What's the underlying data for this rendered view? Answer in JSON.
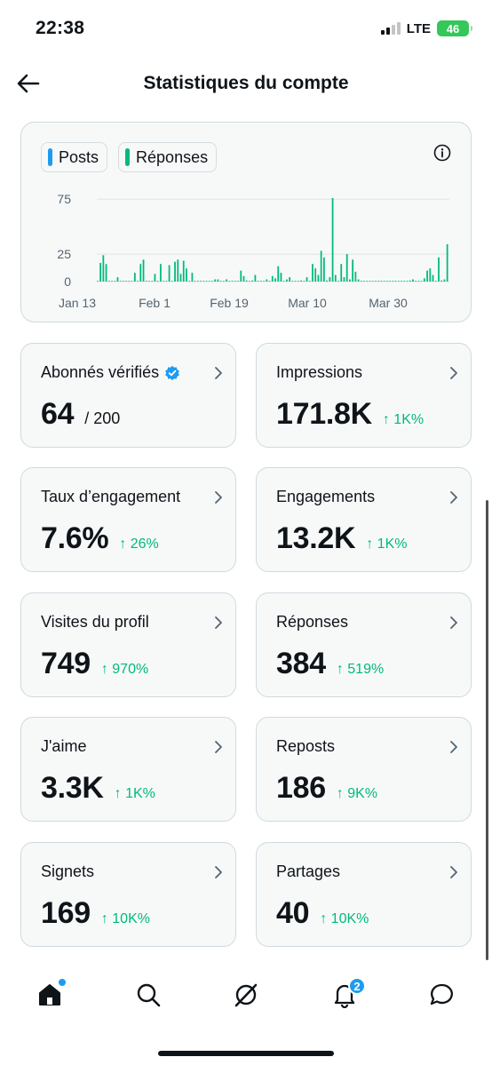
{
  "status_bar": {
    "time": "22:38",
    "network": "LTE",
    "battery": "46"
  },
  "header": {
    "title": "Statistiques du compte"
  },
  "chart": {
    "legend": [
      {
        "label": "Posts",
        "color": "#1d9bf0"
      },
      {
        "label": "Réponses",
        "color": "#00ba7c"
      }
    ]
  },
  "chart_data": {
    "type": "bar",
    "series": [
      {
        "name": "Posts",
        "color": "#1d9bf0",
        "values": []
      },
      {
        "name": "Réponses",
        "color": "#00ba7c",
        "values": [
          0,
          17,
          24,
          16,
          0,
          0,
          0,
          4,
          0,
          0,
          0,
          0,
          0,
          8,
          0,
          16,
          20,
          0,
          0,
          0,
          7,
          0,
          16,
          0,
          0,
          15,
          0,
          18,
          20,
          7,
          19,
          12,
          0,
          8,
          0,
          0,
          0,
          0,
          0,
          0,
          0,
          2,
          2,
          0,
          0,
          2,
          0,
          0,
          0,
          0,
          10,
          5,
          1,
          0,
          1,
          6,
          0,
          0,
          0,
          2,
          0,
          5,
          3,
          14,
          8,
          0,
          2,
          4,
          0,
          0,
          0,
          1,
          0,
          4,
          0,
          16,
          12,
          6,
          28,
          22,
          1,
          4,
          76,
          6,
          0,
          16,
          4,
          25,
          2,
          20,
          9,
          2,
          0,
          0,
          0,
          0,
          0,
          0,
          0,
          0,
          0,
          0,
          0,
          0,
          0,
          0,
          0,
          0,
          0,
          1,
          2,
          0,
          0,
          0,
          3,
          10,
          12,
          6,
          0,
          22,
          1,
          2,
          34
        ]
      }
    ],
    "x_ticks": [
      "Jan 13",
      "Feb 1",
      "Feb 19",
      "Mar 10",
      "Mar 30"
    ],
    "y_ticks": [
      0,
      25,
      75
    ],
    "ylim": [
      0,
      80
    ]
  },
  "cards": [
    {
      "label": "Abonnés vérifiés",
      "value": "64",
      "sub": "/ 200",
      "change": "",
      "verified": true
    },
    {
      "label": "Impressions",
      "value": "171.8K",
      "sub": "",
      "change": "↑ 1K%"
    },
    {
      "label": "Taux d’engagement",
      "value": "7.6%",
      "sub": "",
      "change": "↑ 26%"
    },
    {
      "label": "Engagements",
      "value": "13.2K",
      "sub": "",
      "change": "↑ 1K%"
    },
    {
      "label": "Visites du profil",
      "value": "749",
      "sub": "",
      "change": "↑ 970%"
    },
    {
      "label": "Réponses",
      "value": "384",
      "sub": "",
      "change": "↑ 519%"
    },
    {
      "label": "J'aime",
      "value": "3.3K",
      "sub": "",
      "change": "↑ 1K%"
    },
    {
      "label": "Reposts",
      "value": "186",
      "sub": "",
      "change": "↑ 9K%"
    },
    {
      "label": "Signets",
      "value": "169",
      "sub": "",
      "change": "↑ 10K%"
    },
    {
      "label": "Partages",
      "value": "40",
      "sub": "",
      "change": "↑ 10K%"
    }
  ],
  "nav": {
    "notifications_badge": "2"
  }
}
